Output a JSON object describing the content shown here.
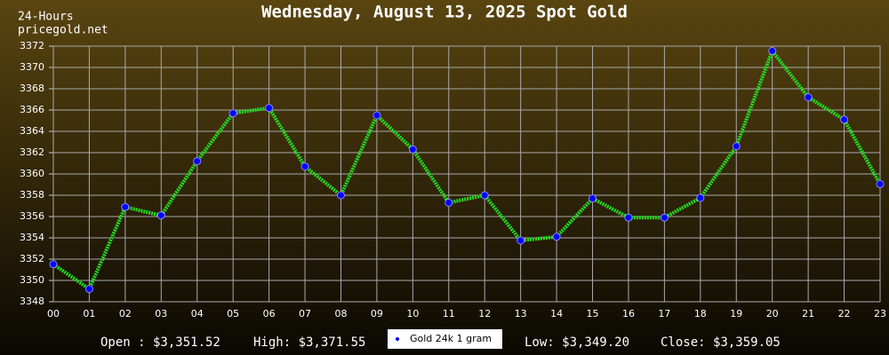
{
  "chart_data": {
    "type": "line",
    "title": "Wednesday, August 13, 2025 Spot Gold",
    "subtitle": [
      "24-Hours",
      "pricegold.net"
    ],
    "categories": [
      "00",
      "01",
      "02",
      "03",
      "04",
      "05",
      "06",
      "07",
      "08",
      "09",
      "10",
      "11",
      "12",
      "13",
      "14",
      "15",
      "16",
      "17",
      "18",
      "19",
      "20",
      "21",
      "22",
      "23"
    ],
    "series": [
      {
        "name": "Gold 24k 1 gram",
        "color": "#22dd22",
        "marker_color": "#0000ff",
        "values": [
          3351.52,
          3349.2,
          3356.9,
          3356.1,
          3361.2,
          3365.7,
          3366.2,
          3360.7,
          3358.0,
          3365.5,
          3362.3,
          3357.3,
          3358.0,
          3353.75,
          3354.1,
          3357.7,
          3355.9,
          3355.9,
          3357.75,
          3362.6,
          3371.55,
          3367.2,
          3365.1,
          3359.05
        ]
      }
    ],
    "ylim": [
      3348,
      3372
    ],
    "yticks": [
      3348,
      3350,
      3352,
      3354,
      3356,
      3358,
      3360,
      3362,
      3364,
      3366,
      3368,
      3370,
      3372
    ],
    "grid": true,
    "annotations": [
      "Open : $3,351.52",
      "High: $3,371.55",
      "Low: $3,349.20",
      "Close: $3,359.05"
    ]
  }
}
